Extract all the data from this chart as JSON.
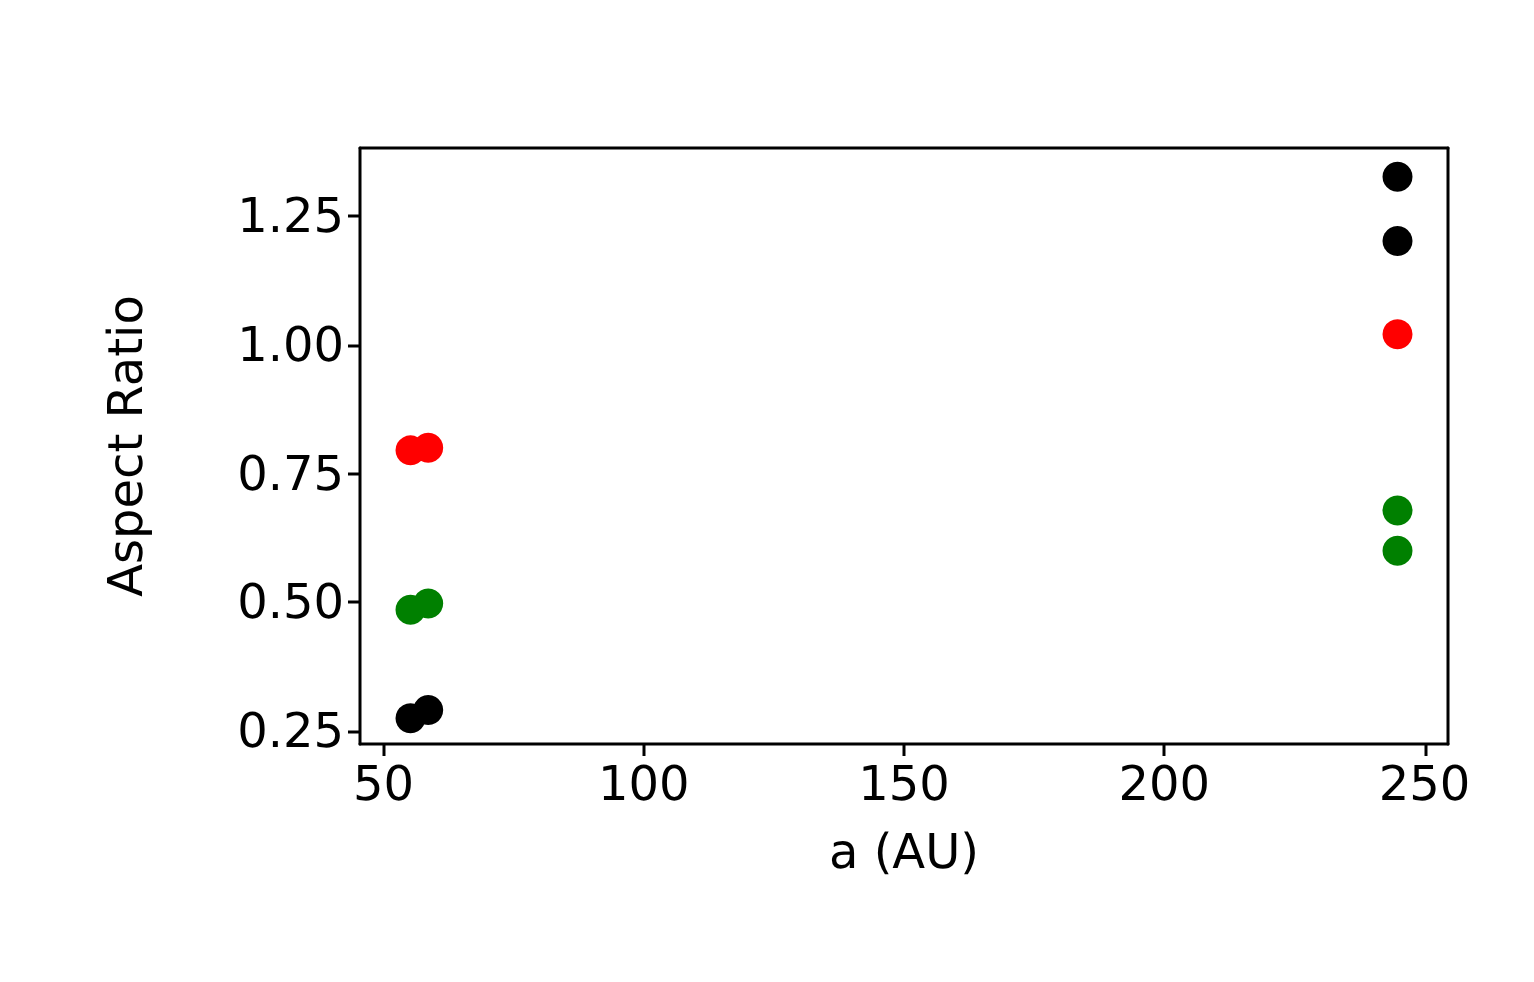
{
  "chart_data": {
    "type": "scatter",
    "xlabel": "a (AU)",
    "ylabel": "Aspect Ratio",
    "xlim": [
      45.5,
      254.5
    ],
    "xticks": [
      50,
      100,
      150,
      200,
      250
    ],
    "ylim": [
      0.224,
      1.383
    ],
    "yticks": [
      {
        "value": 0.25,
        "label": "0.25"
      },
      {
        "value": 0.5,
        "label": "0.50"
      },
      {
        "value": 0.75,
        "label": "0.75"
      },
      {
        "value": 1,
        "label": "1.00"
      },
      {
        "value": 1.25,
        "label": "1.25"
      }
    ],
    "grid": false,
    "marker": "circle",
    "series": [
      {
        "color": "#000000",
        "x": [
          55.2,
          58.6,
          244.8,
          244.8
        ],
        "values": [
          0.274,
          0.29,
          1.327,
          1.202
        ]
      },
      {
        "color": "#ff0000",
        "x": [
          55.2,
          58.6,
          244.8
        ],
        "values": [
          0.795,
          0.8,
          1.021
        ]
      },
      {
        "color": "#008000",
        "x": [
          55.2,
          58.6,
          244.8,
          244.8
        ],
        "values": [
          0.485,
          0.497,
          0.678,
          0.6
        ]
      }
    ]
  }
}
